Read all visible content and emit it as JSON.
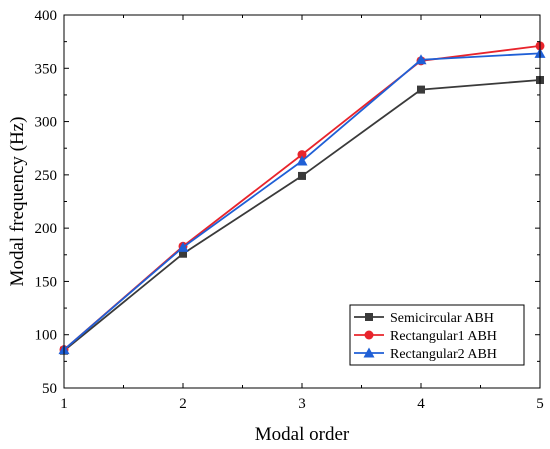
{
  "chart_data": {
    "type": "line",
    "title": "",
    "xlabel": "Modal order",
    "ylabel": "Modal frequency (Hz)",
    "x": [
      1,
      2,
      3,
      4,
      5
    ],
    "xlim": [
      1,
      5
    ],
    "ylim": [
      50,
      400
    ],
    "xticks": [
      "1",
      "2",
      "3",
      "4",
      "5"
    ],
    "yticks": [
      "50",
      "100",
      "150",
      "200",
      "250",
      "300",
      "350",
      "400"
    ],
    "grid": false,
    "legend_position": "bottom-right",
    "series": [
      {
        "name": "Semicircular ABH",
        "values": [
          85,
          176,
          249,
          330,
          339
        ],
        "color": "#3a3a3a",
        "marker": "square"
      },
      {
        "name": "Rectangular1 ABH",
        "values": [
          86,
          183,
          269,
          357,
          371
        ],
        "color": "#e8242c",
        "marker": "circle"
      },
      {
        "name": "Rectangular2 ABH",
        "values": [
          86,
          182,
          263,
          358,
          364
        ],
        "color": "#1f5fd6",
        "marker": "triangle"
      }
    ]
  }
}
